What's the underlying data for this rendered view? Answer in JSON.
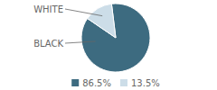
{
  "chart_data": {
    "type": "pie",
    "categories": [
      "BLACK",
      "WHITE"
    ],
    "values": [
      86.5,
      13.5
    ],
    "value_labels": [
      "86.5%",
      "13.5%"
    ],
    "colors": [
      "#3d6b80",
      "#ccdde8"
    ],
    "legend": "bottom"
  }
}
